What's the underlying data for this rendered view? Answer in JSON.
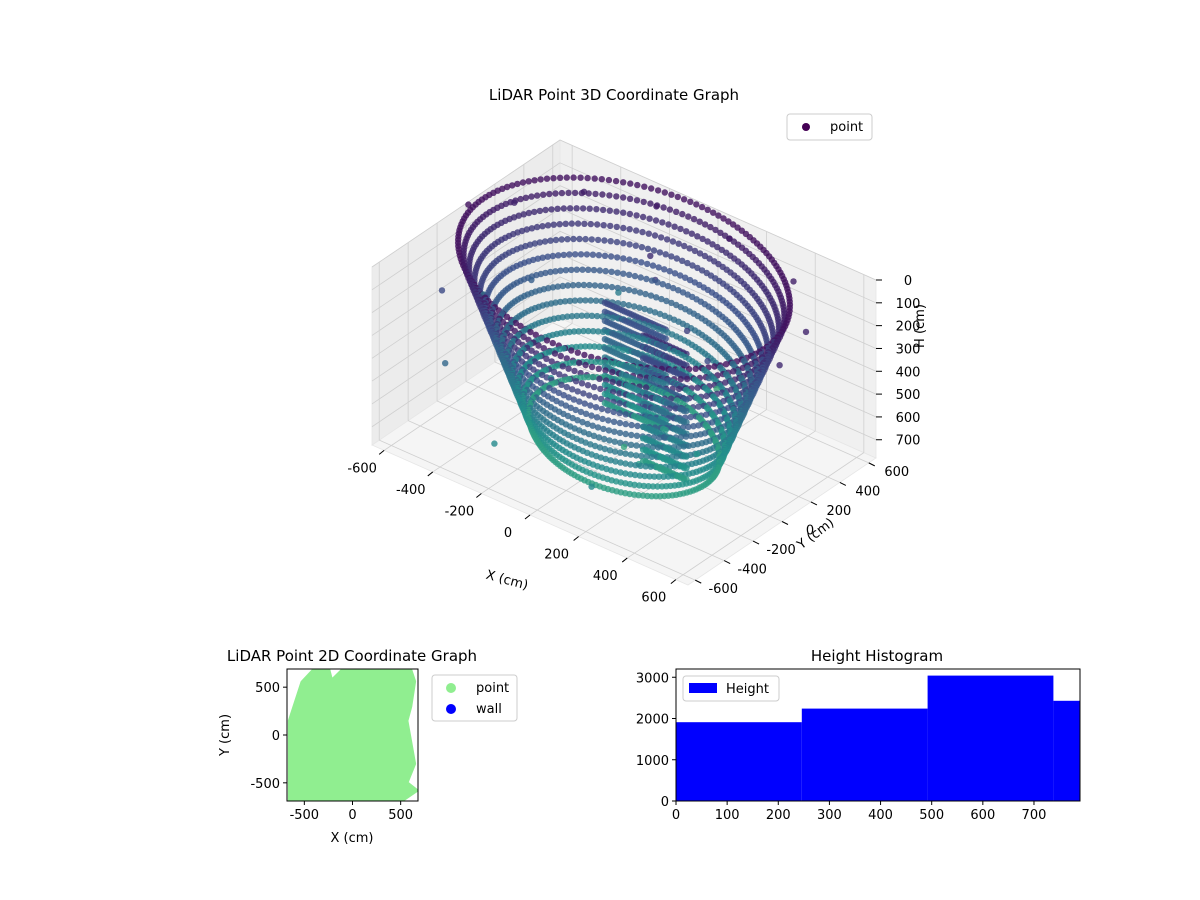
{
  "chart_data": [
    {
      "type": "scatter",
      "projection": "3d",
      "title": "LiDAR Point 3D Coordinate Graph",
      "xlabel": "X (cm)",
      "ylabel": "Y (cm)",
      "zlabel": "H (cm)",
      "xlim": [
        -650,
        650
      ],
      "ylim": [
        -650,
        650
      ],
      "zlim": [
        780,
        0
      ],
      "xticks": [
        -600,
        -400,
        -200,
        0,
        200,
        400,
        600
      ],
      "yticks": [
        -600,
        -400,
        -200,
        0,
        200,
        400,
        600
      ],
      "zticks": [
        0,
        100,
        200,
        300,
        400,
        500,
        600,
        700
      ],
      "zaxis_inverted": true,
      "grid": true,
      "colormap": "viridis",
      "legend": {
        "placement": "top-right",
        "entries": [
          {
            "label": "point",
            "color": "#440154"
          }
        ]
      },
      "series": [
        {
          "name": "point",
          "description_kind": "dense ring-shaped point cloud: outer walls curving from top rim down to the floor, plus an inner box-shaped object",
          "sample_points": [
            [
              -640,
              0,
              0
            ],
            [
              -600,
              250,
              80
            ],
            [
              -450,
              480,
              60
            ],
            [
              -200,
              560,
              40
            ],
            [
              100,
              560,
              40
            ],
            [
              400,
              500,
              60
            ],
            [
              600,
              250,
              80
            ],
            [
              640,
              0,
              100
            ],
            [
              600,
              -250,
              200
            ],
            [
              450,
              -480,
              300
            ],
            [
              200,
              -560,
              600
            ],
            [
              -200,
              -560,
              600
            ],
            [
              -450,
              -480,
              400
            ],
            [
              -600,
              -250,
              250
            ],
            [
              -300,
              0,
              600
            ],
            [
              0,
              0,
              760
            ],
            [
              300,
              0,
              650
            ],
            [
              150,
              -150,
              700
            ],
            [
              -150,
              150,
              650
            ],
            [
              200,
              100,
              200
            ],
            [
              260,
              150,
              400
            ],
            [
              320,
              40,
              250
            ],
            [
              -100,
              350,
              120
            ],
            [
              -50,
              300,
              180
            ],
            [
              -650,
              120,
              450
            ],
            [
              -620,
              380,
              700
            ],
            [
              -380,
              600,
              520
            ],
            [
              0,
              640,
              780
            ],
            [
              -500,
              200,
              350
            ]
          ]
        }
      ]
    },
    {
      "type": "scatter",
      "title": "LiDAR Point 2D Coordinate Graph",
      "xlabel": "X (cm)",
      "ylabel": "Y (cm)",
      "xlim": [
        -680,
        680
      ],
      "ylim": [
        -690,
        690
      ],
      "xticks": [
        -500,
        0,
        500
      ],
      "yticks": [
        -500,
        0,
        500
      ],
      "grid": false,
      "legend": {
        "placement": "outside-right",
        "entries": [
          {
            "label": "point",
            "color": "#90ee90"
          },
          {
            "label": "wall",
            "color": "#0000ff"
          }
        ]
      },
      "regions": [
        {
          "name": "point",
          "color": "#90ee90",
          "outline": [
            [
              -650,
              -690
            ],
            [
              -650,
              150
            ],
            [
              -520,
              550
            ],
            [
              -400,
              680
            ],
            [
              -250,
              680
            ],
            [
              -220,
              560
            ],
            [
              -100,
              680
            ],
            [
              400,
              680
            ],
            [
              600,
              680
            ],
            [
              640,
              560
            ],
            [
              600,
              300
            ],
            [
              560,
              150
            ],
            [
              640,
              -300
            ],
            [
              560,
              -500
            ],
            [
              660,
              -580
            ],
            [
              500,
              -690
            ],
            [
              -650,
              -690
            ]
          ]
        }
      ],
      "series": [
        {
          "name": "wall",
          "values": []
        }
      ]
    },
    {
      "type": "bar",
      "histogram": true,
      "title": "Height Histogram",
      "xlabel": "",
      "ylabel": "",
      "xlim": [
        0,
        790
      ],
      "ylim": [
        0,
        3200
      ],
      "xticks": [
        0,
        100,
        200,
        300,
        400,
        500,
        600,
        700
      ],
      "yticks": [
        0,
        1000,
        2000,
        3000
      ],
      "grid": false,
      "legend": {
        "placement": "top-left",
        "entries": [
          {
            "label": "Height",
            "color": "#0000ff"
          }
        ]
      },
      "bins": [
        {
          "x0": 0,
          "x1": 246,
          "count": 1910
        },
        {
          "x0": 246,
          "x1": 492,
          "count": 2240
        },
        {
          "x0": 492,
          "x1": 738,
          "count": 3040
        },
        {
          "x0": 738,
          "x1": 790,
          "count": 2430
        }
      ],
      "bar_color": "#0000ff"
    }
  ]
}
